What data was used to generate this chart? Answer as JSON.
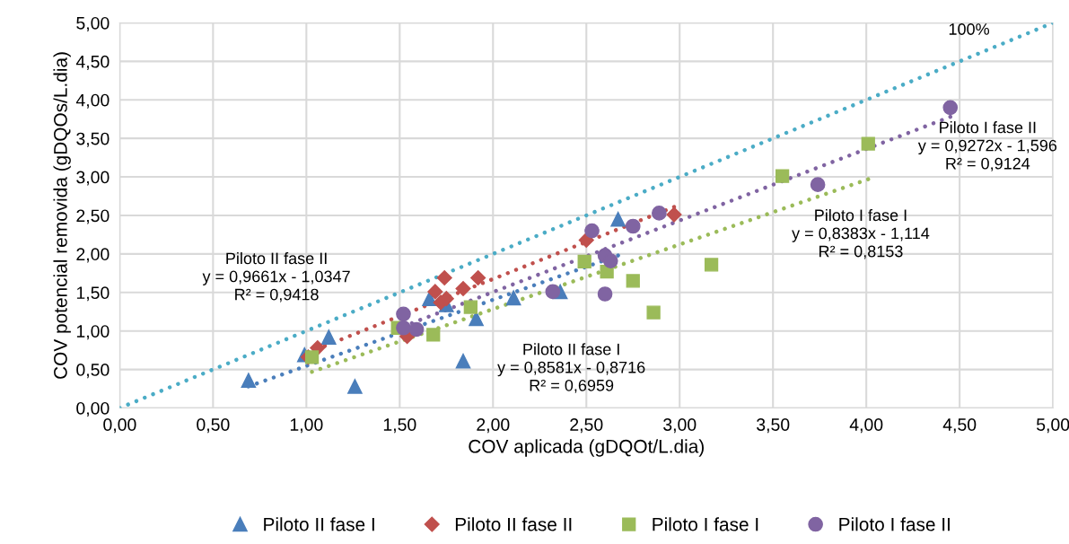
{
  "chart_data": {
    "type": "scatter",
    "xlabel": "COV aplicada (gDQOt/L.dia)",
    "ylabel": "COV potencial removida (gDQOs/L.dia)",
    "xlim": [
      0,
      5
    ],
    "ylim": [
      0,
      5
    ],
    "xticks": [
      {
        "value": 0,
        "label": "0,00"
      },
      {
        "value": 0.5,
        "label": "0,50"
      },
      {
        "value": 1,
        "label": "1,00"
      },
      {
        "value": 1.5,
        "label": "1,50"
      },
      {
        "value": 2,
        "label": "2,00"
      },
      {
        "value": 2.5,
        "label": "2,50"
      },
      {
        "value": 3,
        "label": "3,00"
      },
      {
        "value": 3.5,
        "label": "3,50"
      },
      {
        "value": 4,
        "label": "4,00"
      },
      {
        "value": 4.5,
        "label": "4,50"
      },
      {
        "value": 5,
        "label": "5,00"
      }
    ],
    "yticks": [
      {
        "value": 0,
        "label": "0,00"
      },
      {
        "value": 0.5,
        "label": "0,50"
      },
      {
        "value": 1,
        "label": "1,00"
      },
      {
        "value": 1.5,
        "label": "1,50"
      },
      {
        "value": 2,
        "label": "2,00"
      },
      {
        "value": 2.5,
        "label": "2,50"
      },
      {
        "value": 3,
        "label": "3,00"
      },
      {
        "value": 3.5,
        "label": "3,50"
      },
      {
        "value": 4,
        "label": "4,00"
      },
      {
        "value": 4.5,
        "label": "4,50"
      },
      {
        "value": 5,
        "label": "5,00"
      }
    ],
    "grid": true,
    "legend": "bottom",
    "series": [
      {
        "name": "Piloto II fase I",
        "color": "#4a7ebb",
        "marker": "triangle",
        "x": [
          0.69,
          1.26,
          1.12,
          0.99,
          1.84,
          1.66,
          1.75,
          2.11,
          1.91,
          2.36,
          2.67
        ],
        "values": [
          0.36,
          0.28,
          0.92,
          0.69,
          0.61,
          1.42,
          1.34,
          1.43,
          1.16,
          1.51,
          2.45
        ]
      },
      {
        "name": "Piloto II fase II",
        "color": "#c0504d",
        "marker": "diamond",
        "x": [
          1.01,
          1.06,
          1.54,
          1.69,
          1.72,
          1.75,
          1.74,
          1.84,
          1.92,
          2.5,
          2.97
        ],
        "values": [
          0.66,
          0.78,
          0.93,
          1.51,
          1.37,
          1.42,
          1.69,
          1.55,
          1.69,
          2.18,
          2.51
        ]
      },
      {
        "name": "Piloto I fase I",
        "color": "#9bbb59",
        "marker": "square",
        "x": [
          1.03,
          1.49,
          1.68,
          1.88,
          2.49,
          2.61,
          2.75,
          2.86,
          3.17,
          3.55,
          4.01
        ],
        "values": [
          0.66,
          1.04,
          0.95,
          1.31,
          1.9,
          1.77,
          1.65,
          1.24,
          1.86,
          3.01,
          3.43
        ]
      },
      {
        "name": "Piloto I fase II",
        "color": "#8064a2",
        "marker": "circle",
        "x": [
          1.52,
          1.52,
          1.59,
          2.32,
          2.53,
          2.75,
          2.89,
          2.6,
          2.63,
          2.6,
          3.74,
          4.45
        ],
        "values": [
          1.22,
          1.04,
          1.02,
          1.51,
          2.3,
          2.36,
          2.53,
          1.98,
          1.91,
          1.48,
          2.9,
          3.9
        ]
      },
      {
        "type": "line",
        "color": "#4bacc6",
        "line_style": "dotted",
        "marker": "none",
        "x": [
          0,
          5
        ],
        "values": [
          0,
          5
        ]
      },
      {
        "type": "line",
        "color": "#4a7ebb",
        "line_style": "dotted",
        "marker": "none",
        "x": [
          0.69,
          2.67
        ],
        "values": [
          0.28,
          1.98
        ]
      },
      {
        "type": "line",
        "color": "#c0504d",
        "line_style": "dotted",
        "marker": "none",
        "x": [
          1.01,
          2.97
        ],
        "values": [
          0.72,
          2.61
        ]
      },
      {
        "type": "line",
        "color": "#9bbb59",
        "line_style": "dotted",
        "marker": "none",
        "x": [
          1.03,
          4.01
        ],
        "values": [
          0.47,
          2.97
        ]
      },
      {
        "type": "line",
        "color": "#8064a2",
        "line_style": "dotted",
        "marker": "none",
        "x": [
          1.52,
          4.45
        ],
        "values": [
          1.06,
          3.78
        ]
      }
    ],
    "annotations": [
      "100%",
      "Piloto II fase II\ny = 0,9661x - 1,0347\nR² = 0,9418",
      "Piloto II fase I\ny = 0,8581x - 0,8716\nR² = 0,6959",
      "Piloto I fase I\ny = 0,8383x - 1,114\nR² = 0,8153",
      "Piloto I fase II\ny = 0,9272x - 1,596\nR² = 0,9124"
    ]
  }
}
